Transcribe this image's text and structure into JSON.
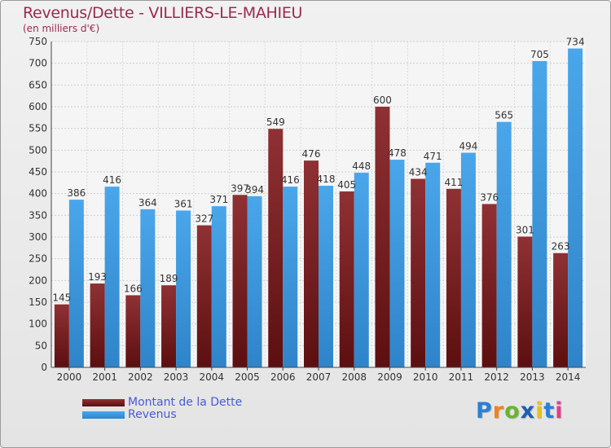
{
  "chart_data": {
    "type": "bar",
    "title": "Revenus/Dette - VILLIERS-LE-MAHIEU",
    "subtitle": "(en milliers d'€)",
    "categories": [
      "2000",
      "2001",
      "2002",
      "2003",
      "2004",
      "2005",
      "2006",
      "2007",
      "2008",
      "2009",
      "2010",
      "2011",
      "2012",
      "2013",
      "2014"
    ],
    "series": [
      {
        "name": "Montant de la Dette",
        "color": "#7a1f22",
        "values": [
          145,
          193,
          166,
          189,
          327,
          397,
          549,
          476,
          405,
          600,
          434,
          411,
          376,
          301,
          263
        ]
      },
      {
        "name": "Revenus",
        "color": "#3d97dd",
        "values": [
          386,
          416,
          364,
          361,
          371,
          394,
          416,
          418,
          448,
          478,
          471,
          494,
          565,
          705,
          734
        ]
      }
    ],
    "ylim": [
      0,
      750
    ],
    "yticks": [
      0,
      50,
      100,
      150,
      200,
      250,
      300,
      350,
      400,
      450,
      500,
      550,
      600,
      650,
      700,
      750
    ],
    "grid": true,
    "legend_position": "bottom-left"
  },
  "logo": {
    "letters": [
      "P",
      "r",
      "o",
      "x",
      "i",
      "t",
      "i"
    ],
    "colors": [
      "#2a7fd4",
      "#f0831f",
      "#68b52f",
      "#1d5fb0",
      "#e8c21a",
      "#2a7fd4",
      "#e23c8f"
    ]
  }
}
